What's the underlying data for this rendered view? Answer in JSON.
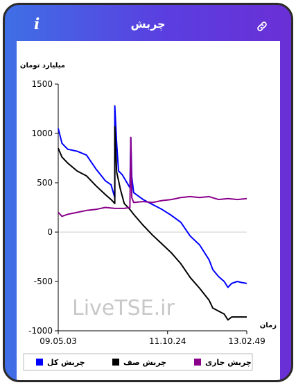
{
  "header": {
    "title": "چربش",
    "info_icon": "info-icon",
    "share_icon": "link-icon"
  },
  "chart_data": {
    "type": "line",
    "title": "",
    "ylabel": "میلیارد تومان",
    "xlabel": "زمان",
    "ylim": [
      -1000,
      1500
    ],
    "yticks": [
      -1000,
      -500,
      0,
      500,
      1000,
      1500
    ],
    "x_tick_labels": [
      "09.05.03",
      "11.10.24",
      "13.02.49"
    ],
    "x_tick_positions": [
      0,
      0.58,
      1
    ],
    "watermark": "LiveTSE.ir",
    "legend_position": "bottom",
    "series": [
      {
        "name": "چربش کل",
        "color": "#0000ff",
        "x": [
          0,
          0.02,
          0.05,
          0.1,
          0.15,
          0.2,
          0.25,
          0.28,
          0.3,
          0.3,
          0.31,
          0.32,
          0.34,
          0.38,
          0.385,
          0.39,
          0.4,
          0.45,
          0.5,
          0.55,
          0.6,
          0.65,
          0.7,
          0.75,
          0.8,
          0.82,
          0.85,
          0.88,
          0.9,
          0.92,
          0.95,
          0.97,
          1
        ],
        "values": [
          1050,
          900,
          840,
          820,
          780,
          640,
          520,
          480,
          350,
          1280,
          900,
          620,
          580,
          450,
          960,
          560,
          400,
          330,
          280,
          230,
          170,
          100,
          -40,
          -130,
          -280,
          -380,
          -450,
          -500,
          -560,
          -520,
          -500,
          -510,
          -520
        ]
      },
      {
        "name": "چربش صف",
        "color": "#000000",
        "x": [
          0,
          0.02,
          0.05,
          0.1,
          0.15,
          0.2,
          0.25,
          0.28,
          0.3,
          0.3,
          0.31,
          0.33,
          0.35,
          0.38,
          0.4,
          0.45,
          0.5,
          0.55,
          0.6,
          0.65,
          0.7,
          0.75,
          0.8,
          0.82,
          0.85,
          0.88,
          0.9,
          0.92,
          0.95,
          1
        ],
        "values": [
          850,
          760,
          700,
          620,
          570,
          470,
          380,
          330,
          290,
          1070,
          610,
          430,
          290,
          230,
          180,
          70,
          -30,
          -120,
          -210,
          -320,
          -460,
          -570,
          -690,
          -770,
          -800,
          -830,
          -890,
          -860,
          -860,
          -860
        ]
      },
      {
        "name": "چربش جاری",
        "color": "#8b008b",
        "x": [
          0,
          0.02,
          0.05,
          0.1,
          0.15,
          0.2,
          0.25,
          0.3,
          0.35,
          0.38,
          0.385,
          0.39,
          0.4,
          0.45,
          0.5,
          0.55,
          0.6,
          0.65,
          0.7,
          0.75,
          0.8,
          0.85,
          0.9,
          0.95,
          1
        ],
        "values": [
          200,
          160,
          180,
          200,
          220,
          230,
          250,
          240,
          240,
          250,
          960,
          350,
          300,
          310,
          300,
          320,
          330,
          350,
          360,
          350,
          360,
          330,
          340,
          330,
          340
        ]
      }
    ]
  }
}
